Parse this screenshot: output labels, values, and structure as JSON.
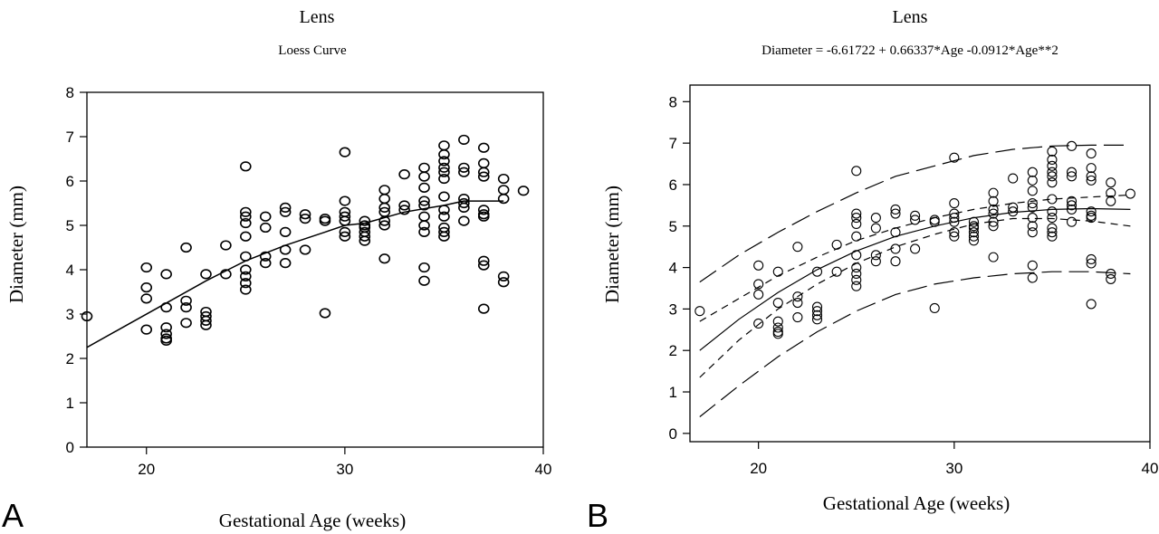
{
  "chart_data": [
    {
      "panel_letter": "A",
      "type": "scatter",
      "title": "Lens",
      "subtitle": "Loess Curve",
      "xlabel": "Gestational Age (weeks)",
      "ylabel": "Diameter (mm)",
      "xlim": [
        17,
        40
      ],
      "ylim": [
        0,
        8
      ],
      "xticks": [
        "20",
        "30",
        "40"
      ],
      "yticks": [
        "0",
        "1",
        "2",
        "3",
        "4",
        "5",
        "6",
        "7",
        "8"
      ],
      "grid": false,
      "points": [
        [
          17,
          2.95
        ],
        [
          20,
          4.05
        ],
        [
          20,
          3.6
        ],
        [
          20,
          3.35
        ],
        [
          20,
          2.65
        ],
        [
          21,
          3.9
        ],
        [
          21,
          3.15
        ],
        [
          21,
          2.7
        ],
        [
          21,
          2.55
        ],
        [
          21,
          2.45
        ],
        [
          21,
          2.4
        ],
        [
          22,
          4.5
        ],
        [
          22,
          3.3
        ],
        [
          22,
          3.15
        ],
        [
          22,
          2.8
        ],
        [
          23,
          3.9
        ],
        [
          23,
          3.05
        ],
        [
          23,
          2.95
        ],
        [
          23,
          2.85
        ],
        [
          23,
          2.75
        ],
        [
          24,
          4.55
        ],
        [
          24,
          3.9
        ],
        [
          25,
          6.33
        ],
        [
          25,
          5.3
        ],
        [
          25,
          5.2
        ],
        [
          25,
          5.05
        ],
        [
          25,
          4.75
        ],
        [
          25,
          4.3
        ],
        [
          25,
          4.0
        ],
        [
          25,
          3.85
        ],
        [
          25,
          3.7
        ],
        [
          25,
          3.55
        ],
        [
          26,
          5.2
        ],
        [
          26,
          4.95
        ],
        [
          26,
          4.3
        ],
        [
          26,
          4.15
        ],
        [
          27,
          5.4
        ],
        [
          27,
          5.3
        ],
        [
          27,
          4.85
        ],
        [
          27,
          4.45
        ],
        [
          27,
          4.15
        ],
        [
          28,
          5.25
        ],
        [
          28,
          5.15
        ],
        [
          28,
          4.45
        ],
        [
          29,
          5.15
        ],
        [
          29,
          5.1
        ],
        [
          29,
          3.02
        ],
        [
          30,
          6.65
        ],
        [
          30,
          5.55
        ],
        [
          30,
          5.3
        ],
        [
          30,
          5.2
        ],
        [
          30,
          5.1
        ],
        [
          30,
          4.85
        ],
        [
          30,
          4.75
        ],
        [
          31,
          5.1
        ],
        [
          31,
          5.0
        ],
        [
          31,
          4.95
        ],
        [
          31,
          4.85
        ],
        [
          31,
          4.75
        ],
        [
          31,
          4.65
        ],
        [
          32,
          5.8
        ],
        [
          32,
          5.6
        ],
        [
          32,
          5.4
        ],
        [
          32,
          5.3
        ],
        [
          32,
          5.1
        ],
        [
          32,
          5.0
        ],
        [
          32,
          4.25
        ],
        [
          33,
          6.15
        ],
        [
          33,
          5.45
        ],
        [
          33,
          5.35
        ],
        [
          34,
          6.3
        ],
        [
          34,
          6.1
        ],
        [
          34,
          5.85
        ],
        [
          34,
          5.55
        ],
        [
          34,
          5.45
        ],
        [
          34,
          5.2
        ],
        [
          34,
          5.0
        ],
        [
          34,
          4.85
        ],
        [
          34,
          4.05
        ],
        [
          34,
          3.75
        ],
        [
          35,
          6.8
        ],
        [
          35,
          6.6
        ],
        [
          35,
          6.45
        ],
        [
          35,
          6.3
        ],
        [
          35,
          6.2
        ],
        [
          35,
          6.05
        ],
        [
          35,
          5.65
        ],
        [
          35,
          5.35
        ],
        [
          35,
          5.2
        ],
        [
          35,
          4.95
        ],
        [
          35,
          4.85
        ],
        [
          35,
          4.75
        ],
        [
          36,
          6.93
        ],
        [
          36,
          6.3
        ],
        [
          36,
          6.2
        ],
        [
          36,
          5.6
        ],
        [
          36,
          5.5
        ],
        [
          36,
          5.4
        ],
        [
          36,
          5.1
        ],
        [
          37,
          6.75
        ],
        [
          37,
          6.4
        ],
        [
          37,
          6.2
        ],
        [
          37,
          6.1
        ],
        [
          37,
          5.35
        ],
        [
          37,
          5.25
        ],
        [
          37,
          5.2
        ],
        [
          37,
          4.2
        ],
        [
          37,
          4.1
        ],
        [
          37,
          3.12
        ],
        [
          38,
          6.05
        ],
        [
          38,
          5.8
        ],
        [
          38,
          5.6
        ],
        [
          38,
          3.85
        ],
        [
          38,
          3.72
        ],
        [
          39,
          5.78
        ]
      ],
      "loess_curve": [
        [
          17,
          2.25
        ],
        [
          19,
          2.75
        ],
        [
          21,
          3.25
        ],
        [
          23,
          3.75
        ],
        [
          25,
          4.2
        ],
        [
          27,
          4.55
        ],
        [
          29,
          4.85
        ],
        [
          30,
          5.0
        ],
        [
          31,
          5.05
        ],
        [
          33,
          5.3
        ],
        [
          35,
          5.45
        ],
        [
          36,
          5.55
        ],
        [
          38,
          5.55
        ]
      ]
    },
    {
      "panel_letter": "B",
      "type": "scatter",
      "title": "Lens",
      "subtitle": "Diameter = -6.61722 + 0.66337*Age -0.0912*Age**2",
      "xlabel": "Gestational Age (weeks)",
      "ylabel": "Diameter   (mm)",
      "xlim": [
        16.5,
        40
      ],
      "ylim": [
        -0.2,
        8.4
      ],
      "xticks": [
        "20",
        "30",
        "40"
      ],
      "yticks": [
        "0",
        "1",
        "2",
        "3",
        "4",
        "5",
        "6",
        "7",
        "8"
      ],
      "grid": false,
      "curves": [
        {
          "style": "solid",
          "points": [
            [
              17,
              2.0
            ],
            [
              19,
              2.75
            ],
            [
              21,
              3.4
            ],
            [
              23,
              3.95
            ],
            [
              25,
              4.4
            ],
            [
              27,
              4.75
            ],
            [
              29,
              5.0
            ],
            [
              31,
              5.2
            ],
            [
              33,
              5.33
            ],
            [
              35,
              5.4
            ],
            [
              37,
              5.42
            ],
            [
              39,
              5.4
            ]
          ]
        },
        {
          "style": "dashed",
          "points": [
            [
              17,
              2.7
            ],
            [
              19,
              3.25
            ],
            [
              21,
              3.8
            ],
            [
              23,
              4.25
            ],
            [
              25,
              4.65
            ],
            [
              27,
              4.95
            ],
            [
              29,
              5.2
            ],
            [
              31,
              5.4
            ],
            [
              33,
              5.55
            ],
            [
              35,
              5.65
            ],
            [
              37,
              5.7
            ],
            [
              39,
              5.75
            ]
          ]
        },
        {
          "style": "dashed",
          "points": [
            [
              17,
              1.35
            ],
            [
              19,
              2.25
            ],
            [
              21,
              3.0
            ],
            [
              23,
              3.6
            ],
            [
              25,
              4.1
            ],
            [
              27,
              4.5
            ],
            [
              29,
              4.8
            ],
            [
              31,
              5.05
            ],
            [
              33,
              5.18
            ],
            [
              35,
              5.18
            ],
            [
              37,
              5.12
            ],
            [
              39,
              5.0
            ]
          ]
        },
        {
          "style": "longdash",
          "points": [
            [
              17,
              3.65
            ],
            [
              19,
              4.3
            ],
            [
              21,
              4.85
            ],
            [
              23,
              5.35
            ],
            [
              25,
              5.8
            ],
            [
              27,
              6.2
            ],
            [
              29,
              6.45
            ],
            [
              31,
              6.7
            ],
            [
              33,
              6.85
            ],
            [
              35,
              6.93
            ],
            [
              37,
              6.95
            ],
            [
              39,
              6.95
            ]
          ]
        },
        {
          "style": "longdash",
          "points": [
            [
              17,
              0.4
            ],
            [
              19,
              1.15
            ],
            [
              21,
              1.85
            ],
            [
              23,
              2.45
            ],
            [
              25,
              2.95
            ],
            [
              27,
              3.35
            ],
            [
              29,
              3.6
            ],
            [
              31,
              3.75
            ],
            [
              33,
              3.85
            ],
            [
              35,
              3.9
            ],
            [
              37,
              3.9
            ],
            [
              39,
              3.85
            ]
          ]
        }
      ]
    }
  ]
}
